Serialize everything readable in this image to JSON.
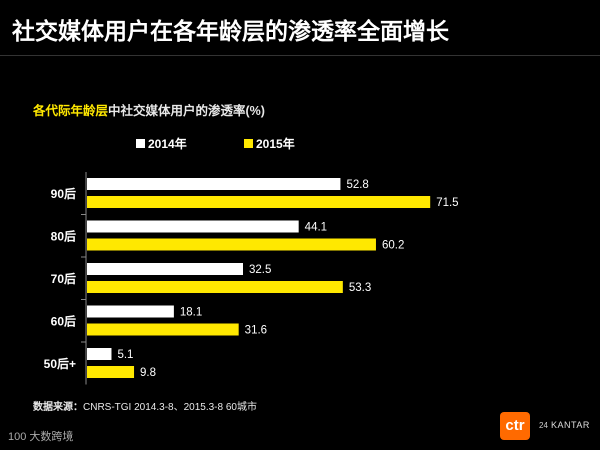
{
  "title": "社交媒体用户在各年龄层的渗透率全面增长",
  "chart_data": {
    "type": "bar",
    "orientation": "horizontal",
    "title_highlight": "各代际年龄层",
    "title_rest": "中社交媒体用户的渗透率(%)",
    "categories": [
      "90后",
      "80后",
      "70后",
      "60后",
      "50后+"
    ],
    "series": [
      {
        "name": "2014年",
        "color": "#ffffff",
        "values": [
          52.8,
          44.1,
          32.5,
          18.1,
          5.1
        ]
      },
      {
        "name": "2015年",
        "color": "#ffe800",
        "values": [
          71.5,
          60.2,
          53.3,
          31.6,
          9.8
        ]
      }
    ],
    "xlim": [
      0,
      100
    ],
    "grid": false,
    "legend_position": "top"
  },
  "source": {
    "label": "数据来源：",
    "text": "CNRS-TGI 2014.3-8、2015.3-8  60城市"
  },
  "logos": {
    "left": "100 大数跨境",
    "ctr": "ctr",
    "ctr_number": "24",
    "kantar": "KANTAR"
  }
}
